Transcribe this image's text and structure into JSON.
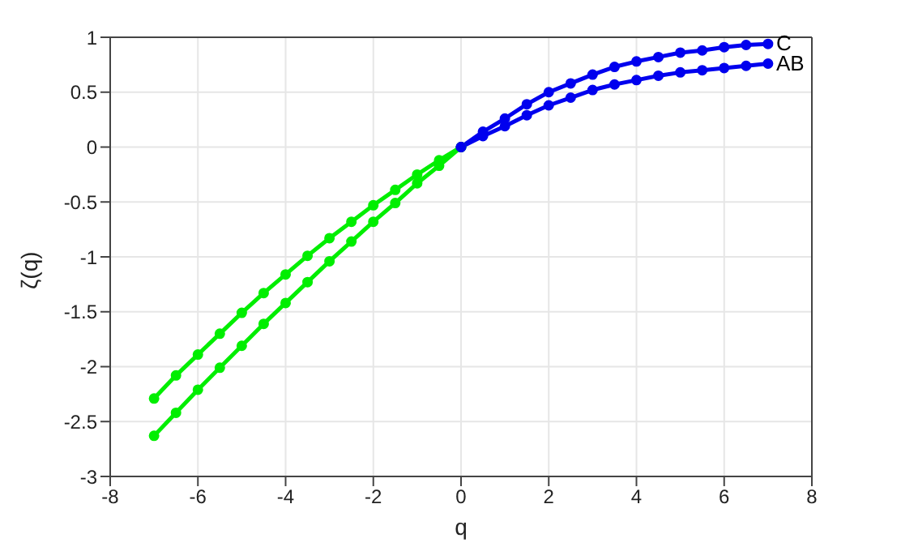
{
  "chart_data": {
    "type": "line",
    "xlabel": "q",
    "ylabel": "ζ(q)",
    "xlim": [
      -8,
      8
    ],
    "xticks": [
      -8,
      -6,
      -4,
      -2,
      0,
      2,
      4,
      6,
      8
    ],
    "ylim": [
      -3,
      1
    ],
    "yticks": [
      -3,
      -2.5,
      -2,
      -1.5,
      -1,
      -0.5,
      0,
      0.5,
      1
    ],
    "grid": true,
    "legend": false,
    "marker": "circle",
    "line_style": "solid",
    "series": [
      {
        "color": "#00ee00",
        "x": [
          -7,
          -6.5,
          -6,
          -5.5,
          -5,
          -4.5,
          -4,
          -3.5,
          -3,
          -2.5,
          -2,
          -1.5,
          -1,
          -0.5,
          0
        ],
        "values": [
          -2.29,
          -2.08,
          -1.89,
          -1.7,
          -1.51,
          -1.33,
          -1.16,
          -0.99,
          -0.83,
          -0.68,
          -0.53,
          -0.39,
          -0.25,
          -0.12,
          0
        ]
      },
      {
        "color": "#00ee00",
        "x": [
          -7,
          -6.5,
          -6,
          -5.5,
          -5,
          -4.5,
          -4,
          -3.5,
          -3,
          -2.5,
          -2,
          -1.5,
          -1,
          -0.5,
          0
        ],
        "values": [
          -2.63,
          -2.42,
          -2.21,
          -2.01,
          -1.81,
          -1.61,
          -1.42,
          -1.23,
          -1.04,
          -0.86,
          -0.68,
          -0.51,
          -0.33,
          -0.17,
          0
        ]
      },
      {
        "name": "C",
        "color": "#0000ee",
        "x": [
          0,
          0.5,
          1,
          1.5,
          2,
          2.5,
          3,
          3.5,
          4,
          4.5,
          5,
          5.5,
          6,
          6.5,
          7
        ],
        "values": [
          0,
          0.14,
          0.26,
          0.39,
          0.5,
          0.58,
          0.66,
          0.73,
          0.78,
          0.82,
          0.86,
          0.88,
          0.91,
          0.93,
          0.94
        ]
      },
      {
        "name": "AB",
        "color": "#0000ee",
        "x": [
          0,
          0.5,
          1,
          1.5,
          2,
          2.5,
          3,
          3.5,
          4,
          4.5,
          5,
          5.5,
          6,
          6.5,
          7
        ],
        "values": [
          0,
          0.1,
          0.19,
          0.29,
          0.38,
          0.45,
          0.52,
          0.57,
          0.61,
          0.65,
          0.68,
          0.7,
          0.72,
          0.74,
          0.76
        ]
      }
    ]
  }
}
